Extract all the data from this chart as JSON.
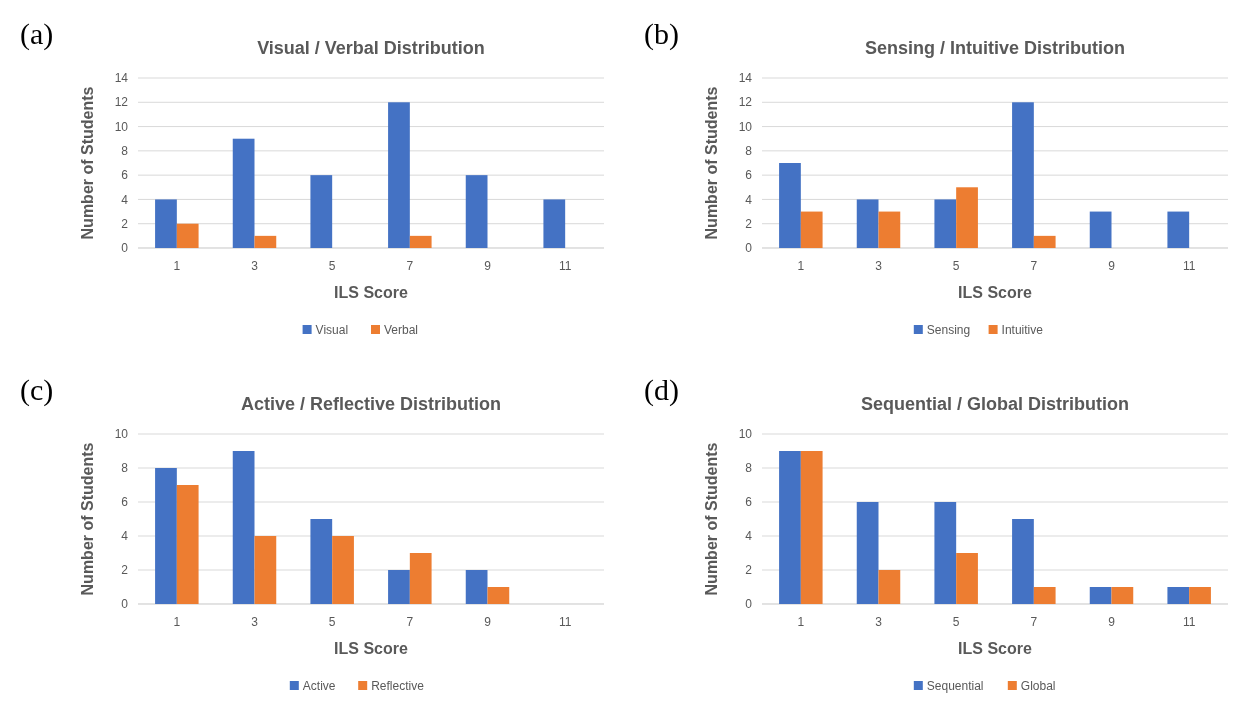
{
  "chart_data": [
    {
      "type": "bar",
      "title": "Visual / Verbal Distribution",
      "xlabel": "ILS Score",
      "ylabel": "Number of Students",
      "annotations": [
        "(a)"
      ],
      "categories": [
        "1",
        "3",
        "5",
        "7",
        "9",
        "11"
      ],
      "ylim": [
        0,
        14
      ],
      "yticks": [
        0,
        2,
        4,
        6,
        8,
        10,
        12,
        14
      ],
      "grid": "y",
      "legend": "bottom",
      "series": [
        {
          "name": "Visual",
          "color": "#4472c4",
          "values": [
            4,
            9,
            6,
            12,
            6,
            4
          ]
        },
        {
          "name": "Verbal",
          "color": "#ed7d31",
          "values": [
            2,
            1,
            0,
            1,
            0,
            0
          ]
        }
      ]
    },
    {
      "type": "bar",
      "title": "Sensing / Intuitive Distribution",
      "xlabel": "ILS Score",
      "ylabel": "Number of Students",
      "annotations": [
        "(b)"
      ],
      "categories": [
        "1",
        "3",
        "5",
        "7",
        "9",
        "11"
      ],
      "ylim": [
        0,
        14
      ],
      "yticks": [
        0,
        2,
        4,
        6,
        8,
        10,
        12,
        14
      ],
      "grid": "y",
      "legend": "bottom",
      "series": [
        {
          "name": "Sensing",
          "color": "#4472c4",
          "values": [
            7,
            4,
            4,
            12,
            3,
            3
          ]
        },
        {
          "name": "Intuitive",
          "color": "#ed7d31",
          "values": [
            3,
            3,
            5,
            1,
            0,
            0
          ]
        }
      ]
    },
    {
      "type": "bar",
      "title": "Active / Reflective Distribution",
      "xlabel": "ILS Score",
      "ylabel": "Number of Students",
      "annotations": [
        "(c)"
      ],
      "categories": [
        "1",
        "3",
        "5",
        "7",
        "9",
        "11"
      ],
      "ylim": [
        0,
        10
      ],
      "yticks": [
        0,
        2,
        4,
        6,
        8,
        10
      ],
      "grid": "y",
      "legend": "bottom",
      "series": [
        {
          "name": "Active",
          "color": "#4472c4",
          "values": [
            8,
            9,
            5,
            2,
            2,
            0
          ]
        },
        {
          "name": "Reflective",
          "color": "#ed7d31",
          "values": [
            7,
            4,
            4,
            3,
            1,
            0
          ]
        }
      ]
    },
    {
      "type": "bar",
      "title": "Sequential / Global Distribution",
      "xlabel": "ILS Score",
      "ylabel": "Number of Students",
      "annotations": [
        "(d)"
      ],
      "categories": [
        "1",
        "3",
        "5",
        "7",
        "9",
        "11"
      ],
      "ylim": [
        0,
        10
      ],
      "yticks": [
        0,
        2,
        4,
        6,
        8,
        10
      ],
      "grid": "y",
      "legend": "bottom",
      "series": [
        {
          "name": "Sequential",
          "color": "#4472c4",
          "values": [
            9,
            6,
            6,
            5,
            1,
            1
          ]
        },
        {
          "name": "Global",
          "color": "#ed7d31",
          "values": [
            9,
            2,
            3,
            1,
            1,
            1
          ]
        }
      ]
    }
  ]
}
